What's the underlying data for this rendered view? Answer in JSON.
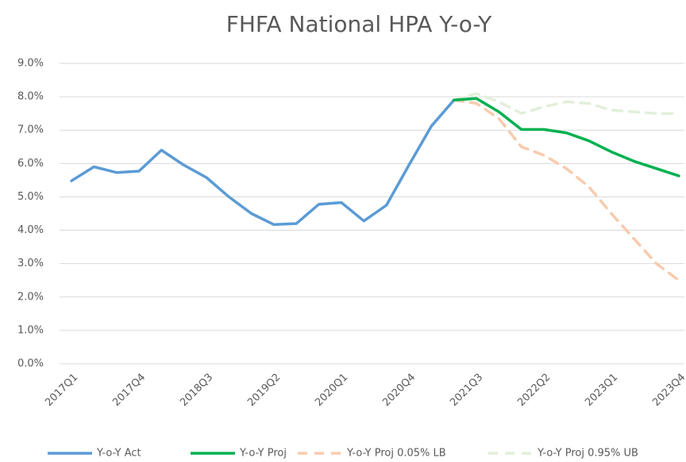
{
  "chart_data": {
    "type": "line",
    "title": "FHFA National HPA Y-o-Y",
    "categories": [
      "2017Q1",
      null,
      null,
      "2017Q4",
      null,
      null,
      "2018Q3",
      null,
      null,
      "2019Q2",
      null,
      null,
      "2020Q1",
      null,
      null,
      "2020Q4",
      null,
      null,
      "2021Q3",
      null,
      null,
      "2022Q2",
      null,
      null,
      "2023Q1",
      null,
      null,
      "2023Q4"
    ],
    "series": [
      {
        "name": "Y-o-Y Act",
        "color": "#5b9bd5",
        "dashed": false,
        "values": [
          5.48,
          5.9,
          5.73,
          5.77,
          6.4,
          5.95,
          5.58,
          5.0,
          4.5,
          4.17,
          4.2,
          4.78,
          4.83,
          4.28,
          4.75,
          5.95,
          7.12,
          7.9,
          null,
          null,
          null,
          null,
          null,
          null,
          null,
          null,
          null,
          null
        ]
      },
      {
        "name": "Y-o-Y Proj",
        "color": "#00b050",
        "dashed": false,
        "values": [
          null,
          null,
          null,
          null,
          null,
          null,
          null,
          null,
          null,
          null,
          null,
          null,
          null,
          null,
          null,
          null,
          null,
          7.9,
          7.95,
          7.55,
          7.02,
          7.02,
          6.92,
          6.68,
          6.35,
          6.07,
          5.85,
          5.63
        ]
      },
      {
        "name": "Y-o-Y Proj 0.05% LB",
        "color": "#f8cbad",
        "dashed": true,
        "values": [
          null,
          null,
          null,
          null,
          null,
          null,
          null,
          null,
          null,
          null,
          null,
          null,
          null,
          null,
          null,
          null,
          null,
          7.9,
          7.8,
          7.35,
          6.5,
          6.25,
          5.85,
          5.3,
          4.5,
          3.75,
          3.0,
          2.5
        ]
      },
      {
        "name": "Y-o-Y Proj 0.95% UB",
        "color": "#e2efda",
        "dashed": true,
        "values": [
          null,
          null,
          null,
          null,
          null,
          null,
          null,
          null,
          null,
          null,
          null,
          null,
          null,
          null,
          null,
          null,
          null,
          7.9,
          8.1,
          7.85,
          7.5,
          7.7,
          7.85,
          7.8,
          7.6,
          7.55,
          7.5,
          7.5
        ]
      }
    ],
    "ylim": [
      0,
      9
    ],
    "yticks": [
      {
        "value": 0,
        "label": "0.0%"
      },
      {
        "value": 1,
        "label": "1.0%"
      },
      {
        "value": 2,
        "label": "2.0%"
      },
      {
        "value": 3,
        "label": "3.0%"
      },
      {
        "value": 4,
        "label": "4.0%"
      },
      {
        "value": 5,
        "label": "5.0%"
      },
      {
        "value": 6,
        "label": "6.0%"
      },
      {
        "value": 7,
        "label": "7.0%"
      },
      {
        "value": 8,
        "label": "8.0%"
      },
      {
        "value": 9,
        "label": "9.0%"
      }
    ],
    "grid": true,
    "legend": "bottom"
  }
}
